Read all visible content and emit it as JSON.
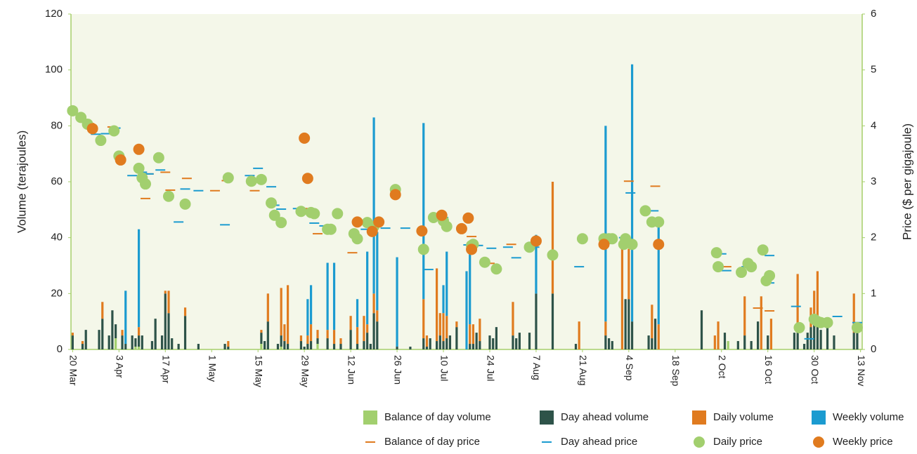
{
  "chart_data": {
    "type": "combo",
    "y_label": "Volume (terajoules)",
    "y2_label": "Price ($ per gigajoule)",
    "xlim": [
      -0.5,
      238.5
    ],
    "xticks": [
      {
        "value": 0,
        "label": "20 Mar"
      },
      {
        "value": 14,
        "label": "3 Apr"
      },
      {
        "value": 28,
        "label": "17 Apr"
      },
      {
        "value": 42,
        "label": "1 May"
      },
      {
        "value": 56,
        "label": "15 May"
      },
      {
        "value": 70,
        "label": "29 May"
      },
      {
        "value": 84,
        "label": "12 Jun"
      },
      {
        "value": 98,
        "label": "26 Jun"
      },
      {
        "value": 112,
        "label": "10 Jul"
      },
      {
        "value": 126,
        "label": "24 Jul"
      },
      {
        "value": 140,
        "label": "7 Aug"
      },
      {
        "value": 154,
        "label": "21 Aug"
      },
      {
        "value": 168,
        "label": "4 Sep"
      },
      {
        "value": 182,
        "label": "18 Sep"
      },
      {
        "value": 196,
        "label": "2 Oct"
      },
      {
        "value": 210,
        "label": "16 Oct"
      },
      {
        "value": 224,
        "label": "30 Oct"
      },
      {
        "value": 238,
        "label": "13 Nov"
      }
    ],
    "ylim": [
      0,
      120
    ],
    "yticks": [
      0,
      20,
      40,
      60,
      80,
      100,
      120
    ],
    "y2lim": [
      0,
      6
    ],
    "y2ticks": [
      0,
      1,
      2,
      3,
      4,
      5,
      6
    ],
    "x": [
      0,
      3,
      4,
      8,
      9,
      11,
      12,
      13,
      15,
      16,
      18,
      19,
      20,
      21,
      24,
      25,
      27,
      28,
      29,
      30,
      32,
      34,
      38,
      46,
      47,
      57,
      58,
      59,
      62,
      63,
      64,
      65,
      69,
      70,
      71,
      72,
      74,
      77,
      79,
      81,
      84,
      86,
      88,
      89,
      90,
      91,
      92,
      98,
      102,
      106,
      107,
      108,
      110,
      111,
      112,
      113,
      114,
      116,
      119,
      120,
      121,
      122,
      123,
      126,
      127,
      128,
      133,
      134,
      135,
      138,
      140,
      145,
      152,
      153,
      161,
      162,
      163,
      166,
      167,
      168,
      169,
      174,
      175,
      176,
      177,
      190,
      194,
      195,
      197,
      198,
      201,
      203,
      205,
      207,
      208,
      210,
      211,
      218,
      219,
      221,
      222,
      223,
      224,
      225,
      226,
      228,
      230,
      236,
      237
    ],
    "series": [
      {
        "name": "Balance of day volume",
        "type": "bar",
        "color": "#a2cf6e",
        "values": [
          0,
          0,
          0,
          0,
          0,
          0,
          0,
          4,
          0,
          0,
          0,
          1,
          1,
          0,
          0,
          0,
          0,
          0,
          0,
          0,
          0,
          0,
          0,
          0,
          0,
          2,
          0,
          0,
          0,
          1,
          0,
          0,
          0,
          0,
          0,
          0,
          2,
          0,
          0,
          0,
          0,
          0,
          0,
          0,
          0,
          0,
          0,
          0,
          0,
          0,
          0,
          0,
          0,
          0,
          0,
          0,
          0,
          0,
          0,
          0,
          0,
          0,
          0,
          0,
          0,
          0,
          0,
          0,
          0,
          0,
          0,
          0,
          0,
          0,
          0,
          0,
          0,
          0,
          0,
          0,
          0,
          0,
          0,
          0,
          0,
          0,
          0,
          0,
          0,
          3,
          0,
          0,
          0,
          0,
          0,
          0,
          0,
          0,
          0,
          0,
          0,
          0,
          0,
          0,
          0,
          0,
          0,
          0,
          0
        ]
      },
      {
        "name": "Day ahead volume",
        "type": "bar",
        "color": "#2e5349",
        "values": [
          5,
          2,
          7,
          7,
          11,
          5,
          14,
          5,
          5,
          2,
          5,
          3,
          4,
          5,
          3,
          11,
          5,
          20,
          13,
          4,
          2,
          12,
          2,
          2,
          1,
          4,
          3,
          10,
          2,
          4,
          3,
          2,
          3,
          1,
          2,
          3,
          2,
          4,
          2,
          2,
          7,
          2,
          3,
          6,
          2,
          13,
          10,
          1,
          1,
          4,
          1,
          4,
          3,
          5,
          3,
          4,
          5,
          8,
          0,
          2,
          2,
          6,
          3,
          5,
          4,
          8,
          5,
          4,
          6,
          6,
          20,
          20,
          2,
          0,
          5,
          4,
          3,
          0,
          18,
          18,
          10,
          5,
          4,
          11,
          0,
          14,
          0,
          0,
          6,
          0,
          3,
          5,
          3,
          10,
          0,
          5,
          0,
          6,
          6,
          2,
          6,
          8,
          9,
          8,
          7,
          8,
          5,
          6,
          6
        ]
      },
      {
        "name": "Daily volume",
        "type": "bar",
        "color": "#e07b1f",
        "values": [
          1,
          1,
          0,
          0,
          6,
          0,
          0,
          0,
          2,
          0,
          0,
          0,
          3,
          0,
          0,
          0,
          0,
          1,
          8,
          0,
          0,
          3,
          0,
          0,
          2,
          1,
          0,
          10,
          0,
          17,
          6,
          21,
          2,
          0,
          3,
          6,
          3,
          3,
          5,
          2,
          5,
          6,
          9,
          3,
          0,
          7,
          4,
          0,
          0,
          14,
          4,
          0,
          26,
          8,
          10,
          8,
          0,
          2,
          0,
          7,
          7,
          0,
          8,
          0,
          0,
          0,
          12,
          0,
          0,
          0,
          0,
          40,
          0,
          10,
          5,
          0,
          0,
          38,
          0,
          18,
          0,
          0,
          12,
          0,
          9,
          0,
          5,
          10,
          0,
          0,
          0,
          14,
          0,
          0,
          19,
          0,
          11,
          0,
          21,
          0,
          0,
          7,
          12,
          20,
          0,
          0,
          0,
          14,
          0
        ]
      },
      {
        "name": "Weekly volume",
        "type": "bar",
        "color": "#1b9bd0",
        "values": [
          0,
          0,
          0,
          0,
          0,
          0,
          0,
          0,
          0,
          19,
          0,
          0,
          35,
          0,
          0,
          0,
          0,
          0,
          0,
          0,
          0,
          0,
          0,
          0,
          0,
          0,
          0,
          0,
          0,
          0,
          0,
          0,
          0,
          0,
          13,
          14,
          0,
          24,
          24,
          0,
          0,
          10,
          0,
          26,
          0,
          63,
          28,
          32,
          0,
          63,
          0,
          0,
          0,
          0,
          10,
          23,
          0,
          0,
          28,
          26,
          0,
          0,
          0,
          0,
          0,
          0,
          0,
          0,
          0,
          0,
          21,
          0,
          0,
          0,
          70,
          0,
          0,
          0,
          0,
          0,
          92,
          0,
          0,
          0,
          37,
          0,
          0,
          0,
          0,
          0,
          0,
          0,
          0,
          0,
          0,
          0,
          0,
          0,
          0,
          0,
          0,
          0,
          0,
          0,
          0,
          0,
          0,
          0,
          0
        ]
      },
      {
        "name": "Balance of day price",
        "type": "dash",
        "axis": "y2",
        "color": "#e07b1f",
        "x": [
          0,
          5,
          12,
          22,
          23,
          28,
          29.5,
          34.5,
          43,
          46.5,
          55,
          61,
          69.5,
          74,
          84.5,
          120.5,
          126,
          132.5,
          168,
          176,
          197.5,
          207,
          210.5
        ],
        "values": [
          4.24,
          4.04,
          3.98,
          2.7,
          3.14,
          3.17,
          2.85,
          3.06,
          2.84,
          3.02,
          2.84,
          2.42,
          2.52,
          2.07,
          1.73,
          2.02,
          1.54,
          1.88,
          3.01,
          2.92,
          1.48,
          0.74,
          0.69
        ]
      },
      {
        "name": "Day ahead price",
        "type": "dash",
        "axis": "y2",
        "color": "#1b9bd0",
        "x": [
          0,
          3,
          5,
          7,
          10,
          13,
          18,
          21,
          23,
          26.5,
          29,
          32,
          34,
          38,
          46,
          53.5,
          56,
          60,
          61,
          63,
          68,
          73,
          76,
          88.5,
          94.5,
          100.5,
          107.5,
          112,
          119.5,
          122.5,
          126.5,
          131.5,
          134,
          139.5,
          153,
          160.5,
          166.5,
          168.5,
          175.5,
          196,
          197.5,
          203.5,
          210.5,
          210.5,
          218.5,
          222.5,
          226.5,
          231,
          237
        ],
        "values": [
          4.29,
          4.09,
          4.02,
          3.85,
          3.86,
          3.96,
          3.11,
          3.17,
          3.14,
          3.21,
          2.76,
          2.28,
          2.87,
          2.84,
          2.23,
          3.11,
          3.24,
          2.91,
          2.58,
          2.51,
          2.52,
          2.26,
          2.21,
          2.15,
          2.17,
          2.17,
          1.43,
          2.36,
          1.87,
          1.86,
          1.81,
          1.83,
          1.64,
          1.83,
          1.48,
          2,
          2,
          2.8,
          2.48,
          1.71,
          1.41,
          1.48,
          1.68,
          1.19,
          0.77,
          0.19,
          0.5,
          0.59,
          0.48
        ]
      },
      {
        "name": "Daily price",
        "type": "scatter",
        "axis": "y2",
        "color": "#a2cf6e",
        "x": [
          0,
          2.5,
          4.5,
          8.5,
          12.5,
          14,
          20,
          21,
          22,
          26,
          29,
          34,
          47,
          54,
          57,
          60,
          61,
          63,
          69,
          72,
          73,
          77,
          78,
          80,
          85,
          86,
          89,
          91,
          97.5,
          106,
          109,
          112,
          113,
          120.5,
          121,
          124.5,
          128,
          138,
          145,
          154,
          160.5,
          162,
          163,
          166.5,
          167,
          169,
          173,
          175,
          177,
          194.5,
          195,
          202,
          204,
          205,
          208.5,
          209.5,
          210.5,
          219.5,
          224,
          225,
          226,
          228,
          237
        ],
        "values": [
          4.27,
          4.15,
          4.03,
          3.74,
          3.91,
          3.46,
          3.24,
          3.07,
          2.96,
          3.43,
          2.74,
          2.6,
          3.07,
          3.01,
          3.04,
          2.62,
          2.4,
          2.27,
          2.47,
          2.45,
          2.43,
          2.15,
          2.15,
          2.43,
          2.07,
          1.98,
          2.27,
          2.2,
          2.86,
          1.79,
          2.36,
          2.3,
          2.2,
          1.86,
          1.88,
          1.56,
          1.44,
          1.83,
          1.69,
          1.98,
          1.98,
          1.98,
          1.98,
          1.88,
          1.98,
          1.88,
          2.48,
          2.28,
          2.28,
          1.73,
          1.48,
          1.38,
          1.54,
          1.48,
          1.78,
          1.23,
          1.32,
          0.39,
          0.54,
          0.5,
          0.48,
          0.48,
          0.39
        ]
      },
      {
        "name": "Weekly price",
        "type": "scatter",
        "axis": "y2",
        "color": "#e07b1f",
        "x": [
          6,
          14.5,
          20,
          70,
          71,
          86,
          90.5,
          92.5,
          97.5,
          105.5,
          111.5,
          117.5,
          119.5,
          120.5,
          140,
          160.5,
          177
        ],
        "values": [
          3.95,
          3.39,
          3.58,
          3.78,
          3.06,
          2.28,
          2.11,
          2.28,
          2.77,
          2.12,
          2.4,
          2.16,
          2.35,
          1.79,
          1.94,
          1.88,
          1.88
        ]
      }
    ]
  }
}
